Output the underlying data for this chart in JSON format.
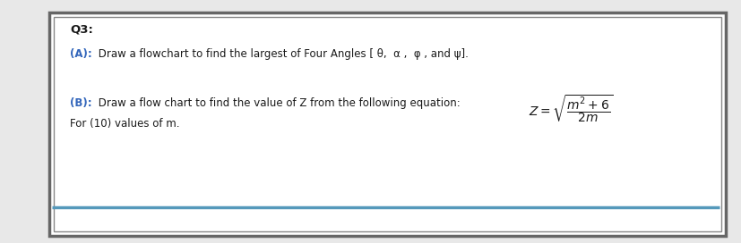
{
  "title": "Q3:",
  "line_a_label": "(A):",
  "line_a_text": " Draw a flowchart to find the largest of Four Angles [ θ,  α ,  φ , and ψ].",
  "line_b_label": "(B):",
  "line_b_text": " Draw a flow chart to find the value of Z from the following equation:",
  "line_c": "For (10) values of m.",
  "equation": "$Z = \\sqrt{\\dfrac{m^2+6}{2m}}$",
  "bg_color": "#e8e8e8",
  "box_bg": "#ffffff",
  "outer_border_color": "#666666",
  "inner_border_color": "#888888",
  "title_color": "#1a1a1a",
  "text_color": "#1a1a1a",
  "label_color": "#3366bb",
  "bottom_line_color": "#5599bb",
  "font_size_title": 9.5,
  "font_size_text": 8.5,
  "font_size_eq": 10
}
